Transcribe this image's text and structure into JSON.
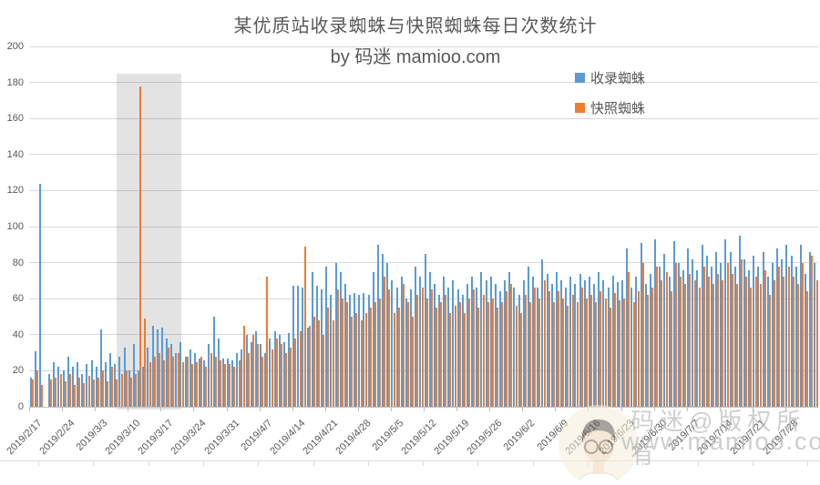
{
  "header": {
    "title": "某优质站收录蜘蛛与快照蜘蛛每日次数统计",
    "subtitle": "by 码迷 mamioo.com"
  },
  "legend": {
    "items": [
      {
        "label": "收录蜘蛛",
        "color": "#5B9BD5"
      },
      {
        "label": "快照蜘蛛",
        "color": "#ED7D31"
      }
    ]
  },
  "watermark": {
    "line1": "码迷@版权所有",
    "line2": "www.mamioo.com",
    "avatar_icon": "mamioo-avatar"
  },
  "chart_data": {
    "type": "bar",
    "title": "某优质站收录蜘蛛与快照蜘蛛每日次数统计",
    "subtitle": "by 码迷 mamioo.com",
    "xlabel": "",
    "ylabel": "",
    "ylim": [
      0,
      200
    ],
    "y_ticks": [
      0,
      20,
      40,
      60,
      80,
      100,
      120,
      140,
      160,
      180,
      200
    ],
    "grid": "horizontal",
    "legend_position": "top-right",
    "granularity": "daily",
    "days": 168,
    "x_start": "2019/2/17",
    "x_tick_labels": [
      "2019/2/17",
      "2019/2/24",
      "2019/3/3",
      "2019/3/10",
      "2019/3/17",
      "2019/3/24",
      "2019/3/31",
      "2019/4/7",
      "2019/4/14",
      "2019/4/21",
      "2019/4/28",
      "2019/5/5",
      "2019/5/12",
      "2019/5/19",
      "2019/5/26",
      "2019/6/2",
      "2019/6/9",
      "2019/6/16",
      "2019/6/23",
      "2019/6/30",
      "2019/7/7",
      "2019/7/14",
      "2019/7/21",
      "2019/7/28"
    ],
    "highlight_region": {
      "from": "2019/3/8",
      "to": "2019/3/21",
      "start_day_index": 18.6,
      "end_day_index": 32.4,
      "color": "#e2e2e2"
    },
    "series": [
      {
        "name": "收录蜘蛛",
        "color": "#5B9BD5",
        "values": [
          16,
          31,
          124,
          0,
          18,
          25,
          22,
          20,
          28,
          22,
          25,
          18,
          24,
          26,
          22,
          43,
          25,
          30,
          24,
          28,
          33,
          20,
          35,
          20,
          22,
          33,
          45,
          43,
          44,
          38,
          35,
          30,
          36,
          28,
          32,
          30,
          27,
          26,
          35,
          50,
          38,
          27,
          27,
          26,
          30,
          32,
          40,
          36,
          42,
          35,
          30,
          38,
          42,
          40,
          36,
          41,
          67,
          67,
          66,
          44,
          75,
          67,
          65,
          78,
          62,
          80,
          75,
          68,
          62,
          63,
          62,
          63,
          62,
          75,
          90,
          85,
          80,
          70,
          66,
          72,
          60,
          65,
          78,
          72,
          85,
          75,
          68,
          62,
          72,
          66,
          70,
          65,
          62,
          68,
          72,
          66,
          75,
          70,
          72,
          68,
          64,
          70,
          75,
          66,
          62,
          70,
          78,
          72,
          66,
          82,
          74,
          68,
          75,
          70,
          66,
          72,
          68,
          74,
          70,
          72,
          68,
          75,
          70,
          66,
          73,
          69,
          70,
          88,
          66,
          72,
          91,
          68,
          74,
          93,
          78,
          85,
          72,
          92,
          80,
          76,
          88,
          82,
          76,
          90,
          84,
          78,
          86,
          80,
          93,
          86,
          78,
          95,
          82,
          76,
          84,
          78,
          86,
          72,
          80,
          88,
          82,
          90,
          84,
          78,
          90,
          74,
          86,
          80
        ]
      },
      {
        "name": "快照蜘蛛",
        "color": "#ED7D31",
        "values": [
          15,
          20,
          12,
          0,
          15,
          16,
          18,
          14,
          18,
          12,
          16,
          13,
          17,
          15,
          16,
          20,
          14,
          22,
          15,
          18,
          20,
          16,
          18,
          178,
          49,
          25,
          28,
          30,
          26,
          33,
          28,
          30,
          25,
          28,
          24,
          25,
          28,
          22,
          30,
          28,
          26,
          24,
          24,
          22,
          26,
          45,
          30,
          40,
          35,
          28,
          72,
          32,
          38,
          35,
          30,
          33,
          38,
          42,
          89,
          45,
          50,
          48,
          40,
          55,
          48,
          65,
          60,
          58,
          50,
          52,
          48,
          52,
          55,
          58,
          60,
          72,
          65,
          52,
          55,
          68,
          58,
          50,
          62,
          66,
          60,
          65,
          55,
          58,
          62,
          52,
          56,
          58,
          52,
          60,
          65,
          55,
          62,
          58,
          60,
          55,
          58,
          64,
          68,
          56,
          52,
          62,
          58,
          66,
          60,
          70,
          64,
          58,
          64,
          60,
          56,
          62,
          58,
          66,
          60,
          62,
          58,
          64,
          60,
          55,
          63,
          59,
          60,
          75,
          58,
          64,
          80,
          62,
          66,
          78,
          70,
          75,
          64,
          80,
          72,
          68,
          74,
          70,
          66,
          78,
          72,
          68,
          74,
          70,
          80,
          74,
          68,
          82,
          72,
          66,
          72,
          68,
          76,
          62,
          70,
          78,
          72,
          78,
          72,
          68,
          80,
          64,
          84,
          70
        ]
      }
    ]
  }
}
